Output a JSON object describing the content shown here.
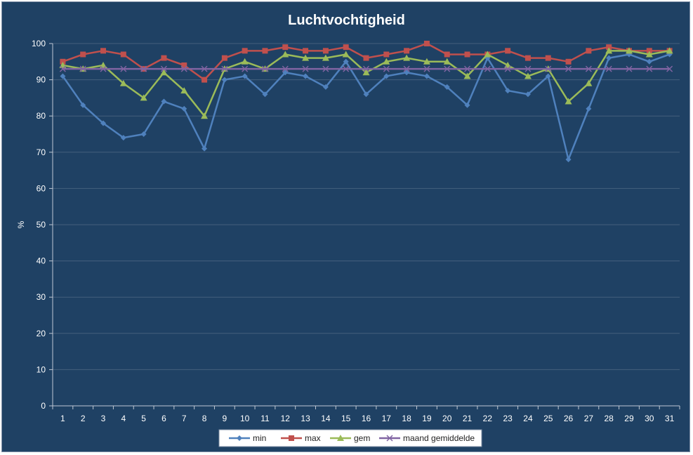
{
  "chart_data": {
    "type": "line",
    "title": "Luchtvochtigheid",
    "xlabel": "",
    "ylabel": "%",
    "ylim": [
      0,
      100
    ],
    "yticks": [
      0,
      10,
      20,
      30,
      40,
      50,
      60,
      70,
      80,
      90,
      100
    ],
    "grid": "horizontal major gridlines",
    "legend_position": "bottom",
    "categories": [
      "1",
      "2",
      "3",
      "4",
      "5",
      "6",
      "7",
      "8",
      "9",
      "10",
      "11",
      "12",
      "13",
      "14",
      "15",
      "16",
      "17",
      "18",
      "19",
      "20",
      "21",
      "22",
      "23",
      "24",
      "25",
      "26",
      "27",
      "28",
      "29",
      "30",
      "31"
    ],
    "series": [
      {
        "name": "min",
        "color": "#4f81bd",
        "marker": "diamond",
        "values": [
          91,
          83,
          78,
          74,
          75,
          84,
          82,
          71,
          90,
          91,
          86,
          92,
          91,
          88,
          95,
          86,
          91,
          92,
          91,
          88,
          83,
          96,
          87,
          86,
          91,
          68,
          82,
          96,
          97,
          95,
          97
        ]
      },
      {
        "name": "max",
        "color": "#c0504d",
        "marker": "square",
        "values": [
          95,
          97,
          98,
          97,
          93,
          96,
          94,
          90,
          96,
          98,
          98,
          99,
          98,
          98,
          99,
          96,
          97,
          98,
          100,
          97,
          97,
          97,
          98,
          96,
          96,
          95,
          98,
          99,
          98,
          98,
          98
        ]
      },
      {
        "name": "gem",
        "color": "#9bbb59",
        "marker": "triangle",
        "values": [
          94,
          93,
          94,
          89,
          85,
          92,
          87,
          80,
          93,
          95,
          93,
          97,
          96,
          96,
          97,
          92,
          95,
          96,
          95,
          95,
          91,
          97,
          94,
          91,
          93,
          84,
          89,
          98,
          98,
          97,
          98
        ]
      },
      {
        "name": "maand gemiddelde",
        "color": "#8064a2",
        "marker": "cross",
        "values": [
          93,
          93,
          93,
          93,
          93,
          93,
          93,
          93,
          93,
          93,
          93,
          93,
          93,
          93,
          93,
          93,
          93,
          93,
          93,
          93,
          93,
          93,
          93,
          93,
          93,
          93,
          93,
          93,
          93,
          93,
          93
        ]
      }
    ]
  }
}
